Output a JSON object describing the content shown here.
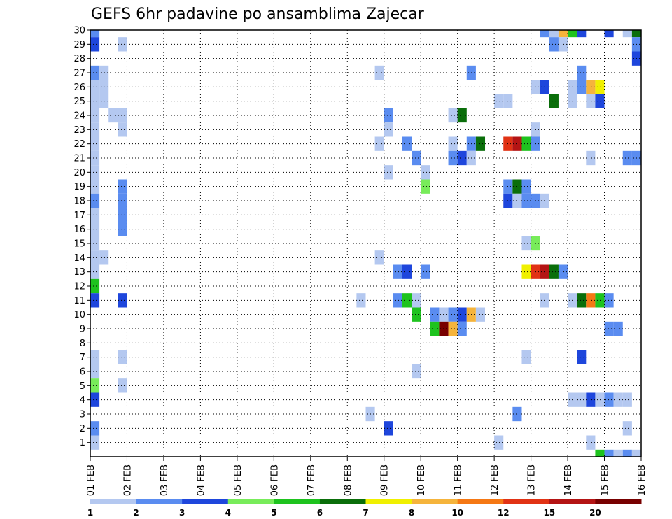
{
  "chart_data": {
    "type": "heatmap",
    "title": "GEFS 6hr padavine po ansamblima Zajecar",
    "xlabel": "",
    "ylabel": "",
    "x_ticks": [
      "01 FEB",
      "02 FEB",
      "03 FEB",
      "04 FEB",
      "05 FEB",
      "06 FEB",
      "07 FEB",
      "08 FEB",
      "09 FEB",
      "10 FEB",
      "11 FEB",
      "12 FEB",
      "13 FEB",
      "14 FEB",
      "15 FEB",
      "16 FEB"
    ],
    "y_ticks": [
      "1",
      "2",
      "3",
      "4",
      "5",
      "6",
      "7",
      "8",
      "9",
      "10",
      "11",
      "12",
      "13",
      "14",
      "15",
      "16",
      "17",
      "18",
      "19",
      "20",
      "21",
      "22",
      "23",
      "24",
      "25",
      "26",
      "27",
      "28",
      "29",
      "30"
    ],
    "x_range_days": [
      0,
      15
    ],
    "y_range": [
      0,
      30
    ],
    "grid": true,
    "legend": {
      "position": "bottom",
      "levels": [
        "1",
        "2",
        "3",
        "4",
        "5",
        "6",
        "7",
        "8",
        "10",
        "12",
        "15",
        "20"
      ],
      "colors": [
        "#b4c8f0",
        "#5a8cf0",
        "#1e46dc",
        "#78ec5a",
        "#1ec31e",
        "#0a6e0a",
        "#f0f000",
        "#f5b43c",
        "#f57814",
        "#e13214",
        "#b41414",
        "#780000"
      ]
    },
    "cells": [
      {
        "day": 0.0,
        "member": 30,
        "level": 2
      },
      {
        "day": 0.0,
        "member": 29,
        "level": 3
      },
      {
        "day": 0.0,
        "member": 27,
        "level": 2
      },
      {
        "day": 0.0,
        "member": 26,
        "level": 1
      },
      {
        "day": 0.0,
        "member": 25,
        "level": 1
      },
      {
        "day": 0.0,
        "member": 24,
        "level": 1
      },
      {
        "day": 0.0,
        "member": 23,
        "level": 1
      },
      {
        "day": 0.0,
        "member": 22,
        "level": 1
      },
      {
        "day": 0.0,
        "member": 21,
        "level": 1
      },
      {
        "day": 0.0,
        "member": 20,
        "level": 1
      },
      {
        "day": 0.0,
        "member": 19,
        "level": 1
      },
      {
        "day": 0.0,
        "member": 18,
        "level": 2
      },
      {
        "day": 0.0,
        "member": 17,
        "level": 1
      },
      {
        "day": 0.0,
        "member": 16,
        "level": 1
      },
      {
        "day": 0.0,
        "member": 15,
        "level": 1
      },
      {
        "day": 0.0,
        "member": 14,
        "level": 1
      },
      {
        "day": 0.0,
        "member": 13,
        "level": 1
      },
      {
        "day": 0.0,
        "member": 12,
        "level": 5
      },
      {
        "day": 0.0,
        "member": 11,
        "level": 3
      },
      {
        "day": 0.0,
        "member": 7,
        "level": 1
      },
      {
        "day": 0.0,
        "member": 6,
        "level": 1
      },
      {
        "day": 0.0,
        "member": 5,
        "level": 4
      },
      {
        "day": 0.0,
        "member": 4,
        "level": 3
      },
      {
        "day": 0.0,
        "member": 2,
        "level": 2
      },
      {
        "day": 0.0,
        "member": 1,
        "level": 1
      },
      {
        "day": 0.25,
        "member": 27,
        "level": 1
      },
      {
        "day": 0.25,
        "member": 26,
        "level": 1
      },
      {
        "day": 0.25,
        "member": 25,
        "level": 1
      },
      {
        "day": 0.25,
        "member": 14,
        "level": 1
      },
      {
        "day": 0.5,
        "member": 24,
        "level": 1
      },
      {
        "day": 0.75,
        "member": 29,
        "level": 1
      },
      {
        "day": 0.75,
        "member": 24,
        "level": 1
      },
      {
        "day": 0.75,
        "member": 23,
        "level": 1
      },
      {
        "day": 0.75,
        "member": 19,
        "level": 2
      },
      {
        "day": 0.75,
        "member": 18,
        "level": 2
      },
      {
        "day": 0.75,
        "member": 17,
        "level": 2
      },
      {
        "day": 0.75,
        "member": 16,
        "level": 2
      },
      {
        "day": 0.75,
        "member": 11,
        "level": 3
      },
      {
        "day": 0.75,
        "member": 7,
        "level": 1
      },
      {
        "day": 0.75,
        "member": 5,
        "level": 1
      },
      {
        "day": 7.25,
        "member": 11,
        "level": 1
      },
      {
        "day": 7.5,
        "member": 3,
        "level": 1
      },
      {
        "day": 7.75,
        "member": 27,
        "level": 1
      },
      {
        "day": 7.75,
        "member": 22,
        "level": 1
      },
      {
        "day": 7.75,
        "member": 14,
        "level": 1
      },
      {
        "day": 8.0,
        "member": 24,
        "level": 2
      },
      {
        "day": 8.0,
        "member": 23,
        "level": 1
      },
      {
        "day": 8.0,
        "member": 20,
        "level": 1
      },
      {
        "day": 8.0,
        "member": 2,
        "level": 3
      },
      {
        "day": 8.25,
        "member": 13,
        "level": 2
      },
      {
        "day": 8.25,
        "member": 11,
        "level": 2
      },
      {
        "day": 8.5,
        "member": 22,
        "level": 2
      },
      {
        "day": 8.5,
        "member": 13,
        "level": 3
      },
      {
        "day": 8.5,
        "member": 11,
        "level": 5
      },
      {
        "day": 8.75,
        "member": 21,
        "level": 2
      },
      {
        "day": 8.75,
        "member": 11,
        "level": 1
      },
      {
        "day": 8.75,
        "member": 10,
        "level": 5
      },
      {
        "day": 8.75,
        "member": 6,
        "level": 1
      },
      {
        "day": 9.0,
        "member": 20,
        "level": 1
      },
      {
        "day": 9.0,
        "member": 19,
        "level": 4
      },
      {
        "day": 9.0,
        "member": 13,
        "level": 2
      },
      {
        "day": 9.25,
        "member": 10,
        "level": 2
      },
      {
        "day": 9.25,
        "member": 9,
        "level": 5
      },
      {
        "day": 9.5,
        "member": 10,
        "level": 1
      },
      {
        "day": 9.5,
        "member": 9,
        "level": 20
      },
      {
        "day": 9.75,
        "member": 24,
        "level": 1
      },
      {
        "day": 9.75,
        "member": 22,
        "level": 1
      },
      {
        "day": 9.75,
        "member": 21,
        "level": 2
      },
      {
        "day": 9.75,
        "member": 10,
        "level": 2
      },
      {
        "day": 9.75,
        "member": 9,
        "level": 8
      },
      {
        "day": 10.0,
        "member": 24,
        "level": 6
      },
      {
        "day": 10.0,
        "member": 21,
        "level": 3
      },
      {
        "day": 10.0,
        "member": 10,
        "level": 3
      },
      {
        "day": 10.0,
        "member": 9,
        "level": 2
      },
      {
        "day": 10.25,
        "member": 27,
        "level": 2
      },
      {
        "day": 10.25,
        "member": 22,
        "level": 2
      },
      {
        "day": 10.25,
        "member": 21,
        "level": 1
      },
      {
        "day": 10.25,
        "member": 10,
        "level": 8
      },
      {
        "day": 10.5,
        "member": 22,
        "level": 6
      },
      {
        "day": 10.5,
        "member": 10,
        "level": 1
      },
      {
        "day": 11.0,
        "member": 25,
        "level": 1
      },
      {
        "day": 11.0,
        "member": 1,
        "level": 1
      },
      {
        "day": 11.25,
        "member": 25,
        "level": 1
      },
      {
        "day": 11.25,
        "member": 22,
        "level": 12
      },
      {
        "day": 11.25,
        "member": 19,
        "level": 2
      },
      {
        "day": 11.25,
        "member": 18,
        "level": 3
      },
      {
        "day": 11.5,
        "member": 22,
        "level": 15
      },
      {
        "day": 11.5,
        "member": 19,
        "level": 6
      },
      {
        "day": 11.5,
        "member": 18,
        "level": 1
      },
      {
        "day": 11.5,
        "member": 3,
        "level": 2
      },
      {
        "day": 11.75,
        "member": 22,
        "level": 5
      },
      {
        "day": 11.75,
        "member": 19,
        "level": 2
      },
      {
        "day": 11.75,
        "member": 18,
        "level": 2
      },
      {
        "day": 11.75,
        "member": 15,
        "level": 1
      },
      {
        "day": 11.75,
        "member": 13,
        "level": 7
      },
      {
        "day": 11.75,
        "member": 7,
        "level": 1
      },
      {
        "day": 12.0,
        "member": 26,
        "level": 1
      },
      {
        "day": 12.0,
        "member": 23,
        "level": 1
      },
      {
        "day": 12.0,
        "member": 22,
        "level": 2
      },
      {
        "day": 12.0,
        "member": 18,
        "level": 2
      },
      {
        "day": 12.0,
        "member": 15,
        "level": 4
      },
      {
        "day": 12.0,
        "member": 13,
        "level": 12
      },
      {
        "day": 12.25,
        "member": 30,
        "level": 2
      },
      {
        "day": 12.25,
        "member": 26,
        "level": 3
      },
      {
        "day": 12.25,
        "member": 18,
        "level": 1
      },
      {
        "day": 12.25,
        "member": 13,
        "level": 15
      },
      {
        "day": 12.25,
        "member": 11,
        "level": 1
      },
      {
        "day": 12.5,
        "member": 30,
        "level": 1
      },
      {
        "day": 12.5,
        "member": 29,
        "level": 2
      },
      {
        "day": 12.5,
        "member": 25,
        "level": 6
      },
      {
        "day": 12.5,
        "member": 13,
        "level": 6
      },
      {
        "day": 12.75,
        "member": 30,
        "level": 8
      },
      {
        "day": 12.75,
        "member": 29,
        "level": 1
      },
      {
        "day": 12.75,
        "member": 13,
        "level": 2
      },
      {
        "day": 13.0,
        "member": 30,
        "level": 5
      },
      {
        "day": 13.0,
        "member": 26,
        "level": 1
      },
      {
        "day": 13.0,
        "member": 25,
        "level": 1
      },
      {
        "day": 13.0,
        "member": 11,
        "level": 1
      },
      {
        "day": 13.0,
        "member": 4,
        "level": 1
      },
      {
        "day": 13.25,
        "member": 30,
        "level": 3
      },
      {
        "day": 13.25,
        "member": 27,
        "level": 2
      },
      {
        "day": 13.25,
        "member": 26,
        "level": 2
      },
      {
        "day": 13.25,
        "member": 11,
        "level": 6
      },
      {
        "day": 13.25,
        "member": 7,
        "level": 3
      },
      {
        "day": 13.25,
        "member": 4,
        "level": 1
      },
      {
        "day": 13.5,
        "member": 26,
        "level": 8
      },
      {
        "day": 13.5,
        "member": 25,
        "level": 1
      },
      {
        "day": 13.5,
        "member": 21,
        "level": 1
      },
      {
        "day": 13.5,
        "member": 11,
        "level": 10
      },
      {
        "day": 13.5,
        "member": 4,
        "level": 3
      },
      {
        "day": 13.5,
        "member": 1,
        "level": 1
      },
      {
        "day": 13.75,
        "member": 26,
        "level": 7
      },
      {
        "day": 13.75,
        "member": 25,
        "level": 3
      },
      {
        "day": 13.75,
        "member": 11,
        "level": 5
      },
      {
        "day": 13.75,
        "member": 4,
        "level": 1
      },
      {
        "day": 13.75,
        "member": 0,
        "level": 5
      },
      {
        "day": 14.0,
        "member": 30,
        "level": 3
      },
      {
        "day": 14.0,
        "member": 11,
        "level": 2
      },
      {
        "day": 14.0,
        "member": 9,
        "level": 2
      },
      {
        "day": 14.0,
        "member": 4,
        "level": 2
      },
      {
        "day": 14.0,
        "member": 0,
        "level": 2
      },
      {
        "day": 14.25,
        "member": 9,
        "level": 2
      },
      {
        "day": 14.25,
        "member": 4,
        "level": 1
      },
      {
        "day": 14.25,
        "member": 0,
        "level": 1
      },
      {
        "day": 14.5,
        "member": 30,
        "level": 1
      },
      {
        "day": 14.5,
        "member": 21,
        "level": 2
      },
      {
        "day": 14.5,
        "member": 4,
        "level": 1
      },
      {
        "day": 14.5,
        "member": 2,
        "level": 1
      },
      {
        "day": 14.5,
        "member": 0,
        "level": 2
      },
      {
        "day": 14.75,
        "member": 30,
        "level": 6
      },
      {
        "day": 14.75,
        "member": 29,
        "level": 2
      },
      {
        "day": 14.75,
        "member": 28,
        "level": 3
      },
      {
        "day": 14.75,
        "member": 21,
        "level": 2
      },
      {
        "day": 14.75,
        "member": 0,
        "level": 1
      }
    ]
  }
}
